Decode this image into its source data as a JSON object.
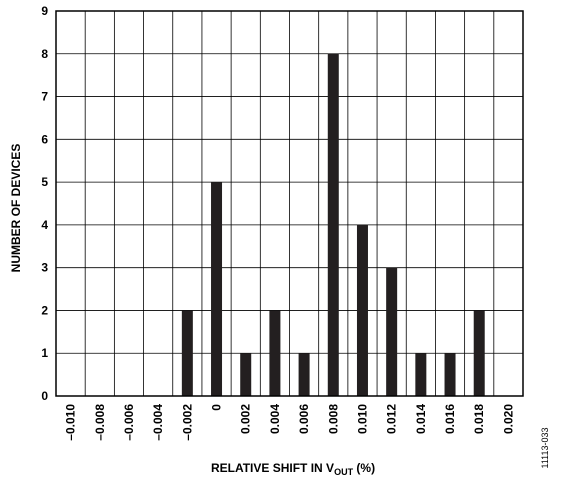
{
  "chart_data": {
    "type": "bar",
    "title": "",
    "xlabel": "RELATIVE SHIFT IN VOUT (%)",
    "xlabel_parts": {
      "main": "RELATIVE SHIFT IN V",
      "sub": "OUT",
      "suffix": " (%)"
    },
    "ylabel": "NUMBER OF DEVICES",
    "categories": [
      "–0.010",
      "–0.008",
      "–0.006",
      "–0.004",
      "–0.002",
      "0",
      "0.002",
      "0.004",
      "0.006",
      "0.008",
      "0.010",
      "0.012",
      "0.014",
      "0.016",
      "0.018",
      "0.020"
    ],
    "values": [
      0,
      0,
      0,
      0,
      2,
      5,
      1,
      2,
      1,
      8,
      4,
      3,
      1,
      1,
      2,
      0
    ],
    "yticks": [
      "0",
      "1",
      "2",
      "3",
      "4",
      "5",
      "6",
      "7",
      "8",
      "9"
    ],
    "ylim": [
      0,
      9
    ],
    "grid": true,
    "bar_color": "#231f20"
  },
  "figure_id": "11113-033"
}
